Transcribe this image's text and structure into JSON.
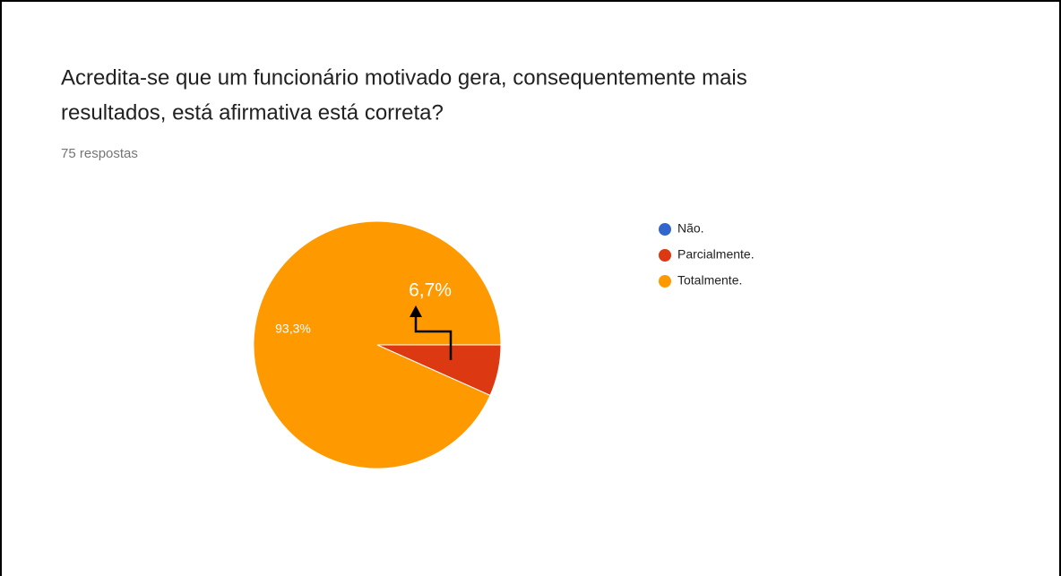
{
  "chart_data": {
    "type": "pie",
    "title": "Acredita-se que um funcionário motivado gera, consequentemente mais resultados, está afirmativa está correta?",
    "title_lines": [
      "Acredita-se que um funcionário motivado gera, consequentemente mais",
      "resultados, está afirmativa está correta?"
    ],
    "subtitle": "75 respostas",
    "categories": [
      "Não.",
      "Parcialmente.",
      "Totalmente."
    ],
    "values": [
      0,
      6.7,
      93.3
    ],
    "value_labels": [
      null,
      "6,7%",
      "93,3%"
    ],
    "colors": [
      "#3366cc",
      "#dc3912",
      "#ff9900"
    ],
    "legend": "right"
  }
}
